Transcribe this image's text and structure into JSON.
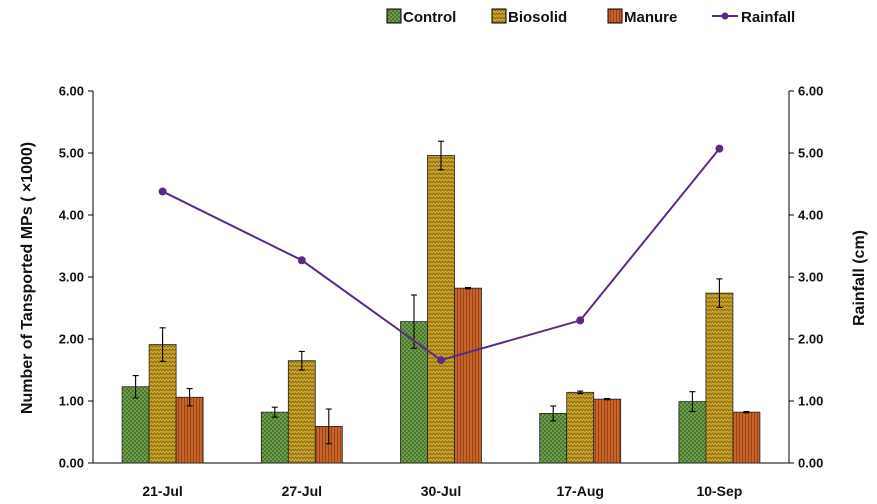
{
  "chart_data": {
    "type": "bar",
    "categories": [
      "21-Jul",
      "27-Jul",
      "30-Jul",
      "17-Aug",
      "10-Sep"
    ],
    "ylabel": "Number of  Tansported MPs  ( ×1000)",
    "ylabel_right": "Rainfall (cm)",
    "ylim": [
      0,
      6
    ],
    "ylim_right": [
      0,
      6
    ],
    "yticks": [
      "0.00",
      "1.00",
      "2.00",
      "3.00",
      "4.00",
      "5.00",
      "6.00"
    ],
    "yticks_right": [
      "0.00",
      "1.00",
      "2.00",
      "3.00",
      "4.00",
      "5.00",
      "6.00"
    ],
    "grid": false,
    "legend_position": "top-right",
    "series": [
      {
        "name": "Control",
        "kind": "bar",
        "color": "#4a7a2c",
        "pattern": "dots",
        "values": [
          1.23,
          0.82,
          2.28,
          0.8,
          0.99
        ],
        "errors": [
          0.18,
          0.08,
          0.43,
          0.12,
          0.16
        ]
      },
      {
        "name": "Biosolid",
        "kind": "bar",
        "color": "#c9a227",
        "pattern": "zigzag",
        "values": [
          1.91,
          1.65,
          4.96,
          1.14,
          2.74
        ],
        "errors": [
          0.27,
          0.15,
          0.23,
          0.02,
          0.23
        ]
      },
      {
        "name": "Manure",
        "kind": "bar",
        "color": "#c8642a",
        "pattern": "vlines",
        "values": [
          1.06,
          0.59,
          2.82,
          1.03,
          0.82
        ],
        "errors": [
          0.14,
          0.28,
          0.01,
          0.01,
          0.01
        ]
      },
      {
        "name": "Rainfall",
        "kind": "line",
        "axis": "right",
        "color": "#5b2a86",
        "values": [
          4.38,
          3.27,
          1.66,
          2.3,
          5.07
        ]
      }
    ]
  }
}
